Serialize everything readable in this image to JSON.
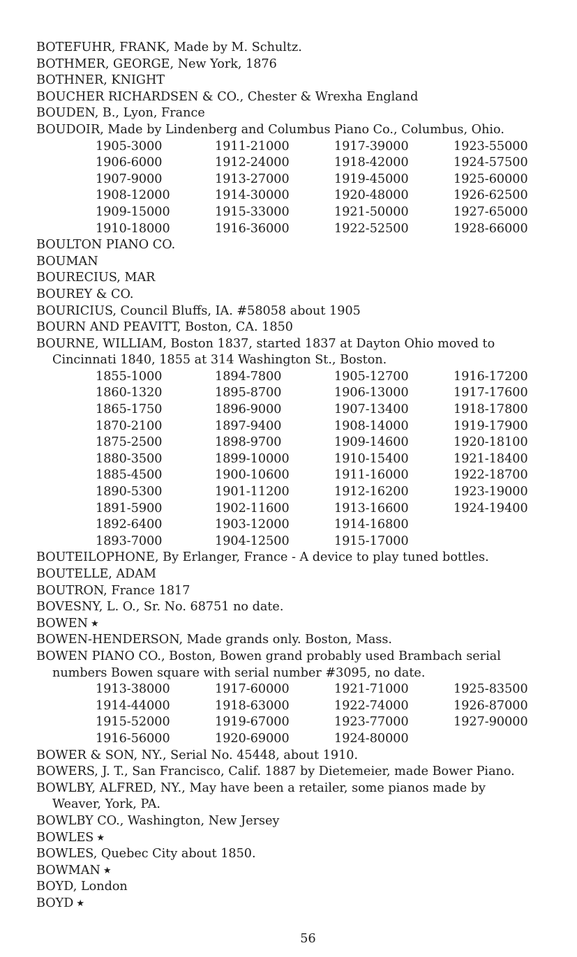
{
  "entries": [
    {
      "text": "BOTEFUHR, FRANK, Made by M. Schultz."
    },
    {
      "text": "BOTHMER, GEORGE, New York, 1876"
    },
    {
      "text": "BOTHNER, KNIGHT"
    },
    {
      "text": "BOUCHER RICHARDSEN & CO., Chester & Wrexha England"
    },
    {
      "text": "BOUDEN, B., Lyon, France"
    },
    {
      "text": "BOUDOIR, Made by Lindenberg and Columbus Piano Co., Columbus, Ohio.",
      "table": [
        [
          "1905-3000",
          "1911-21000",
          "1917-39000",
          "1923-55000"
        ],
        [
          "1906-6000",
          "1912-24000",
          "1918-42000",
          "1924-57500"
        ],
        [
          "1907-9000",
          "1913-27000",
          "1919-45000",
          "1925-60000"
        ],
        [
          "1908-12000",
          "1914-30000",
          "1920-48000",
          "1926-62500"
        ],
        [
          "1909-15000",
          "1915-33000",
          "1921-50000",
          "1927-65000"
        ],
        [
          "1910-18000",
          "1916-36000",
          "1922-52500",
          "1928-66000"
        ]
      ]
    },
    {
      "text": "BOULTON PIANO CO."
    },
    {
      "text": "BOUMAN"
    },
    {
      "text": "BOURECIUS, MAR"
    },
    {
      "text": "BOUREY & CO."
    },
    {
      "text": "BOURICIUS, Council Bluffs, IA. #58058 about 1905"
    },
    {
      "text": "BOURN AND PEAVITT, Boston, CA. 1850"
    },
    {
      "text": "BOURNE, WILLIAM, Boston 1837, started 1837 at Dayton Ohio moved to",
      "cont": "Cincinnati 1840, 1855 at 314 Washington St., Boston.",
      "table": [
        [
          "1855-1000",
          "1894-7800",
          "1905-12700",
          "1916-17200"
        ],
        [
          "1860-1320",
          "1895-8700",
          "1906-13000",
          "1917-17600"
        ],
        [
          "1865-1750",
          "1896-9000",
          "1907-13400",
          "1918-17800"
        ],
        [
          "1870-2100",
          "1897-9400",
          "1908-14000",
          "1919-17900"
        ],
        [
          "1875-2500",
          "1898-9700",
          "1909-14600",
          "1920-18100"
        ],
        [
          "1880-3500",
          "1899-10000",
          "1910-15400",
          "1921-18400"
        ],
        [
          "1885-4500",
          "1900-10600",
          "1911-16000",
          "1922-18700"
        ],
        [
          "1890-5300",
          "1901-11200",
          "1912-16200",
          "1923-19000"
        ],
        [
          "1891-5900",
          "1902-11600",
          "1913-16600",
          "1924-19400"
        ],
        [
          "1892-6400",
          "1903-12000",
          "1914-16800",
          ""
        ],
        [
          "1893-7000",
          "1904-12500",
          "1915-17000",
          ""
        ]
      ]
    },
    {
      "text": "BOUTEILOPHONE, By Erlanger, France - A device to play tuned bottles."
    },
    {
      "text": "BOUTELLE, ADAM"
    },
    {
      "text": "BOUTRON, France 1817"
    },
    {
      "text": "BOVESNY, L. O., Sr. No. 68751 no date."
    },
    {
      "text": "BOWEN",
      "star": "★"
    },
    {
      "text": "BOWEN-HENDERSON, Made grands only. Boston, Mass."
    },
    {
      "text": "BOWEN PIANO CO., Boston, Bowen grand probably used Brambach serial",
      "cont": "numbers Bowen square with serial number #3095, no date.",
      "table": [
        [
          "1913-38000",
          "1917-60000",
          "1921-71000",
          "1925-83500"
        ],
        [
          "1914-44000",
          "1918-63000",
          "1922-74000",
          "1926-87000"
        ],
        [
          "1915-52000",
          "1919-67000",
          "1923-77000",
          "1927-90000"
        ],
        [
          "1916-56000",
          "1920-69000",
          "1924-80000",
          ""
        ]
      ]
    },
    {
      "text": "BOWER & SON, NY., Serial No. 45448, about 1910."
    },
    {
      "text": "BOWERS, J. T., San Francisco, Calif. 1887 by Dietemeier, made Bower Piano."
    },
    {
      "text": "BOWLBY, ALFRED, NY., May have been a retailer, some pianos made by",
      "cont": "Weaver, York, PA."
    },
    {
      "text": "BOWLBY CO., Washington, New Jersey"
    },
    {
      "text": "BOWLES",
      "star": "★"
    },
    {
      "text": "BOWLES, Quebec City about 1850."
    },
    {
      "text": "BOWMAN",
      "star": "★"
    },
    {
      "text": "BOYD, London"
    },
    {
      "text": "BOYD",
      "star": "★"
    }
  ],
  "page_number": "56"
}
